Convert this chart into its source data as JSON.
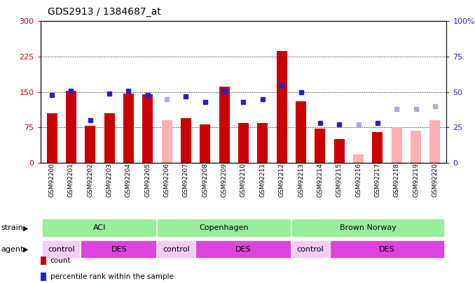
{
  "title": "GDS2913 / 1384687_at",
  "samples": [
    "GSM92200",
    "GSM92201",
    "GSM92202",
    "GSM92203",
    "GSM92204",
    "GSM92205",
    "GSM92206",
    "GSM92207",
    "GSM92208",
    "GSM92209",
    "GSM92210",
    "GSM92211",
    "GSM92212",
    "GSM92213",
    "GSM92214",
    "GSM92215",
    "GSM92216",
    "GSM92217",
    "GSM92218",
    "GSM92219",
    "GSM92220"
  ],
  "bar_values": [
    105,
    152,
    78,
    105,
    147,
    145,
    90,
    95,
    82,
    162,
    85,
    85,
    237,
    130,
    72,
    50,
    17,
    65,
    75,
    68,
    90
  ],
  "bar_absent": [
    false,
    false,
    false,
    false,
    false,
    false,
    true,
    false,
    false,
    false,
    false,
    false,
    false,
    false,
    false,
    false,
    true,
    false,
    true,
    true,
    true
  ],
  "rank_values": [
    48,
    51,
    30,
    49,
    51,
    48,
    45,
    47,
    43,
    51,
    43,
    45,
    55,
    50,
    28,
    27,
    27,
    28,
    38,
    38,
    40
  ],
  "rank_absent": [
    false,
    false,
    false,
    false,
    false,
    false,
    true,
    false,
    false,
    false,
    false,
    false,
    false,
    false,
    false,
    false,
    true,
    false,
    true,
    true,
    true
  ],
  "ylim_left": [
    0,
    300
  ],
  "ylim_right": [
    0,
    100
  ],
  "yticks_left": [
    0,
    75,
    150,
    225,
    300
  ],
  "yticks_right": [
    0,
    25,
    50,
    75,
    100
  ],
  "ytick_labels_left": [
    "0",
    "75",
    "150",
    "225",
    "300"
  ],
  "ytick_labels_right": [
    "0",
    "25",
    "50",
    "75",
    "100%"
  ],
  "strain_groups": [
    {
      "label": "ACI",
      "start": 0,
      "end": 6
    },
    {
      "label": "Copenhagen",
      "start": 6,
      "end": 13
    },
    {
      "label": "Brown Norway",
      "start": 13,
      "end": 21
    }
  ],
  "agent_groups": [
    {
      "label": "control",
      "start": 0,
      "end": 2
    },
    {
      "label": "DES",
      "start": 2,
      "end": 6
    },
    {
      "label": "control",
      "start": 6,
      "end": 8
    },
    {
      "label": "DES",
      "start": 8,
      "end": 13
    },
    {
      "label": "control",
      "start": 13,
      "end": 15
    },
    {
      "label": "DES",
      "start": 15,
      "end": 21
    }
  ],
  "bar_color_present": "#cc0000",
  "bar_color_absent": "#ffb0b0",
  "rank_color_present": "#2222cc",
  "rank_color_absent": "#aaaadd",
  "strain_color": "#99ee99",
  "agent_color_control": "#f5ccf5",
  "agent_color_des": "#dd44dd",
  "background_color": "#ffffff",
  "bar_width": 0.55
}
